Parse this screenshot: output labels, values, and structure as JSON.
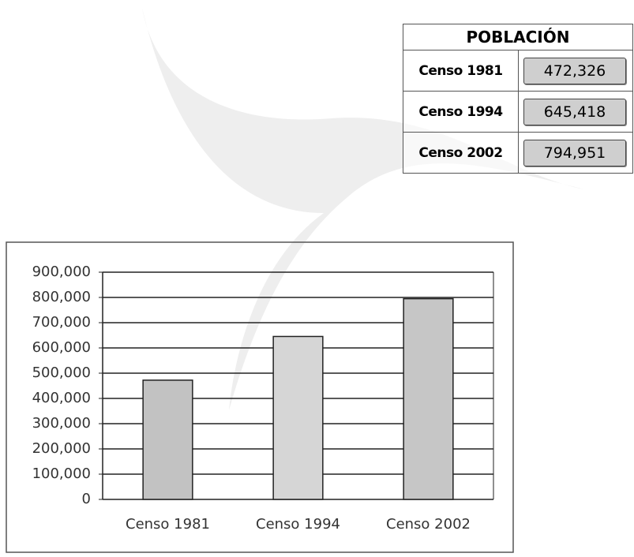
{
  "table": {
    "title": "POBLACIÓN",
    "rows": [
      [
        "Censo 1981",
        "472,326"
      ],
      [
        "Censo 1994",
        "645,418"
      ],
      [
        "Censo 2002",
        "794,951"
      ]
    ]
  },
  "chart_data": {
    "type": "bar",
    "categories": [
      "Censo 1981",
      "Censo 1994",
      "Censo 2002"
    ],
    "values": [
      472326,
      645418,
      794951
    ],
    "colors": [
      "#c2c2c2",
      "#d6d6d6",
      "#c6c6c6"
    ],
    "ylim": [
      0,
      900000
    ],
    "yticks": [
      0,
      {
        "value": 100000,
        "label": "100,000"
      },
      {
        "value": 200000,
        "label": "200,000"
      },
      {
        "value": 300000,
        "label": "300,000"
      },
      {
        "value": 400000,
        "label": "400,000"
      },
      {
        "value": 500000,
        "label": "500,000"
      },
      {
        "value": 600000,
        "label": "600,000"
      },
      {
        "value": 700000,
        "label": "700,000"
      },
      {
        "value": 800000,
        "label": "800,000"
      },
      {
        "value": 900000,
        "label": "900,000"
      }
    ],
    "grid": true
  }
}
